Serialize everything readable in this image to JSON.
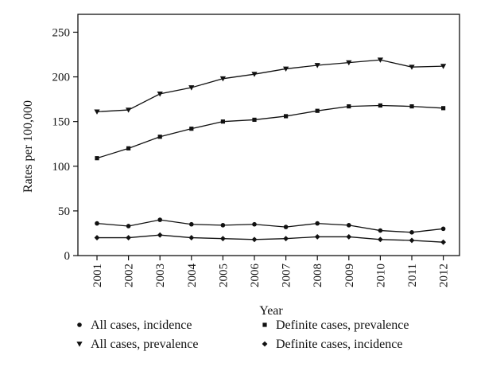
{
  "chart_data": {
    "type": "line",
    "title": "",
    "xlabel": "Year",
    "ylabel": "Rates per 100,000",
    "ylim": [
      0,
      270
    ],
    "yticks": [
      0,
      50,
      100,
      150,
      200,
      250
    ],
    "x": [
      "2001",
      "2002",
      "2003",
      "2004",
      "2005",
      "2006",
      "2007",
      "2008",
      "2009",
      "2010",
      "2011",
      "2012"
    ],
    "grid": false,
    "legend_position": "bottom",
    "series": [
      {
        "name": "All cases, incidence",
        "marker": "circle",
        "values": [
          36,
          33,
          40,
          35,
          34,
          35,
          32,
          36,
          34,
          28,
          26,
          30
        ]
      },
      {
        "name": "All cases, prevalence",
        "marker": "triangle-down",
        "values": [
          161,
          163,
          181,
          188,
          198,
          203,
          209,
          213,
          216,
          219,
          211,
          212
        ]
      },
      {
        "name": "Definite cases, prevalence",
        "marker": "square",
        "values": [
          109,
          120,
          133,
          142,
          150,
          152,
          156,
          162,
          167,
          168,
          167,
          165
        ]
      },
      {
        "name": "Definite cases, incidence",
        "marker": "diamond",
        "values": [
          20,
          20,
          23,
          20,
          19,
          18,
          19,
          21,
          21,
          18,
          17,
          15
        ]
      }
    ],
    "colors": {
      "line": "#111111",
      "axis": "#111111"
    }
  }
}
